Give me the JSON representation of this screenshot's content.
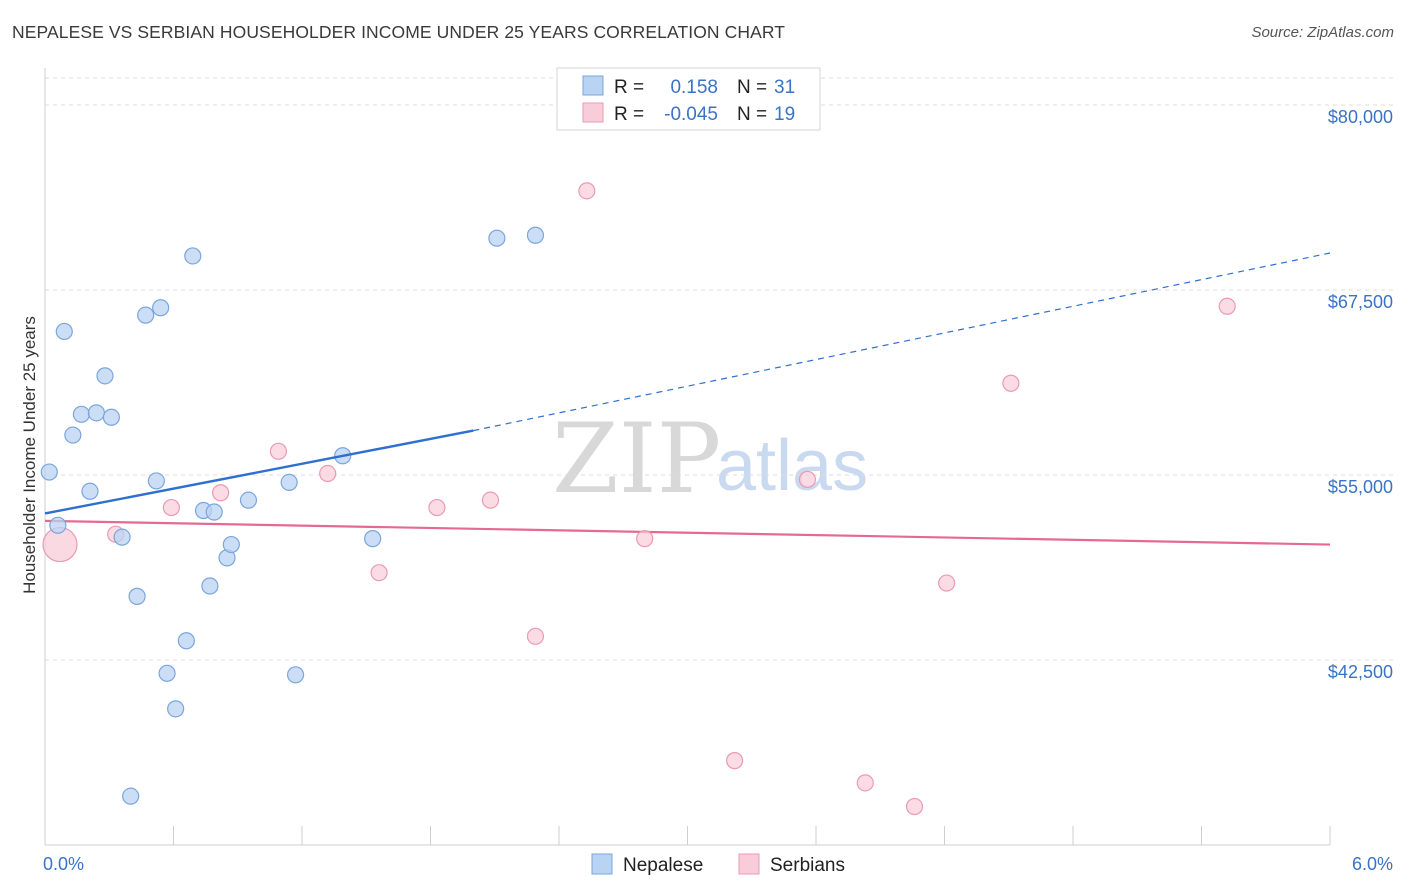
{
  "title": "NEPALESE VS SERBIAN HOUSEHOLDER INCOME UNDER 25 YEARS CORRELATION CHART",
  "source": "Source: ZipAtlas.com",
  "watermark": {
    "part1": "ZIP",
    "part2": "atlas"
  },
  "legend": {
    "r_label": "R =",
    "n_label": "N =",
    "rows": [
      {
        "series": "Nepalese",
        "r": "0.158",
        "n": "31"
      },
      {
        "series": "Serbians",
        "r": "-0.045",
        "n": "19"
      }
    ]
  },
  "colors": {
    "nepalese_fill": "#b9d3f3",
    "nepalese_stroke": "#7aa6dc",
    "nepalese_line": "#2f6fcf",
    "serbians_fill": "#f9ccd9",
    "serbians_stroke": "#eb9ab5",
    "serbians_line": "#e46a94",
    "tick_text": "#3a73c4",
    "grid": "#dddddd"
  },
  "chart_data": {
    "type": "scatter",
    "xlabel": "",
    "ylabel": "Householder Income Under 25 years",
    "xlim": [
      0,
      6
    ],
    "ylim": [
      30000,
      82500
    ],
    "x_tick_labels": {
      "min": "0.0%",
      "max": "6.0%"
    },
    "y_ticks": [
      {
        "value": 42500,
        "label": "$42,500"
      },
      {
        "value": 55000,
        "label": "$55,000"
      },
      {
        "value": 67500,
        "label": "$67,500"
      },
      {
        "value": 80000,
        "label": "$80,000"
      }
    ],
    "series": [
      {
        "name": "Nepalese",
        "points": [
          {
            "x": 0.02,
            "y": 55200
          },
          {
            "x": 0.06,
            "y": 51600
          },
          {
            "x": 0.09,
            "y": 64700
          },
          {
            "x": 0.13,
            "y": 57700
          },
          {
            "x": 0.17,
            "y": 59100
          },
          {
            "x": 0.21,
            "y": 53900
          },
          {
            "x": 0.24,
            "y": 59200
          },
          {
            "x": 0.28,
            "y": 61700
          },
          {
            "x": 0.31,
            "y": 58900
          },
          {
            "x": 0.36,
            "y": 50800
          },
          {
            "x": 0.4,
            "y": 33300
          },
          {
            "x": 0.43,
            "y": 46800
          },
          {
            "x": 0.47,
            "y": 65800
          },
          {
            "x": 0.52,
            "y": 54600
          },
          {
            "x": 0.54,
            "y": 66300
          },
          {
            "x": 0.57,
            "y": 41600
          },
          {
            "x": 0.61,
            "y": 39200
          },
          {
            "x": 0.66,
            "y": 43800
          },
          {
            "x": 0.69,
            "y": 69800
          },
          {
            "x": 0.74,
            "y": 52600
          },
          {
            "x": 0.77,
            "y": 47500
          },
          {
            "x": 0.79,
            "y": 52500
          },
          {
            "x": 0.85,
            "y": 49400
          },
          {
            "x": 0.87,
            "y": 50300
          },
          {
            "x": 0.95,
            "y": 53300
          },
          {
            "x": 1.14,
            "y": 54500
          },
          {
            "x": 1.17,
            "y": 41500
          },
          {
            "x": 1.39,
            "y": 56300
          },
          {
            "x": 1.53,
            "y": 50700
          },
          {
            "x": 2.11,
            "y": 71000
          },
          {
            "x": 2.29,
            "y": 71200
          }
        ],
        "trend": {
          "x0": 0.0,
          "y0": 52400,
          "x1": 2.0,
          "y1": 58000,
          "dashed_to_x": 6.0,
          "dashed_to_y": 70000
        }
      },
      {
        "name": "Serbians",
        "points": [
          {
            "x": 0.07,
            "y": 50300,
            "large": true
          },
          {
            "x": 0.33,
            "y": 51000
          },
          {
            "x": 0.59,
            "y": 52800
          },
          {
            "x": 0.82,
            "y": 53800
          },
          {
            "x": 1.09,
            "y": 56600
          },
          {
            "x": 1.32,
            "y": 55100
          },
          {
            "x": 1.56,
            "y": 48400
          },
          {
            "x": 1.83,
            "y": 52800
          },
          {
            "x": 2.08,
            "y": 53300
          },
          {
            "x": 2.29,
            "y": 44100
          },
          {
            "x": 2.53,
            "y": 74200
          },
          {
            "x": 2.8,
            "y": 50700
          },
          {
            "x": 3.22,
            "y": 35700
          },
          {
            "x": 3.56,
            "y": 54700
          },
          {
            "x": 3.83,
            "y": 34200
          },
          {
            "x": 4.06,
            "y": 32600
          },
          {
            "x": 4.21,
            "y": 47700
          },
          {
            "x": 4.51,
            "y": 61200
          },
          {
            "x": 5.52,
            "y": 66400
          }
        ],
        "trend": {
          "x0": 0.0,
          "y0": 51900,
          "x1": 6.0,
          "y1": 50300
        }
      }
    ]
  }
}
